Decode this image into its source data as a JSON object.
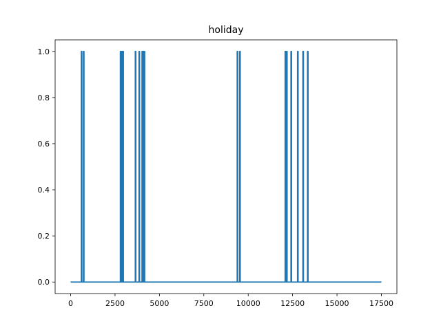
{
  "chart_data": {
    "type": "line",
    "title": "holiday",
    "xlabel": "",
    "ylabel": "",
    "xlim": [
      -875,
      18375
    ],
    "ylim": [
      -0.05,
      1.05
    ],
    "x_ticks": [
      0,
      2500,
      5000,
      7500,
      10000,
      12500,
      15000,
      17500
    ],
    "y_ticks": [
      0.0,
      0.2,
      0.4,
      0.6,
      0.8,
      1.0
    ],
    "x_tick_labels": [
      "0",
      "2500",
      "5000",
      "7500",
      "10000",
      "12500",
      "15000",
      "17500"
    ],
    "y_tick_labels": [
      "0.0",
      "0.2",
      "0.4",
      "0.6",
      "0.8",
      "1.0"
    ],
    "grid": false,
    "series": [
      {
        "color": "#1f77b4",
        "x_range": [
          0,
          17500
        ],
        "baseline": 0,
        "spike_value": 1,
        "spikes": [
          [
            600,
            630
          ],
          [
            720,
            750
          ],
          [
            2800,
            2830
          ],
          [
            2880,
            2920
          ],
          [
            2940,
            2970
          ],
          [
            3640,
            3670
          ],
          [
            3850,
            3880
          ],
          [
            4020,
            4050
          ],
          [
            4090,
            4120
          ],
          [
            4140,
            4170
          ],
          [
            9380,
            9410
          ],
          [
            9520,
            9550
          ],
          [
            12080,
            12110
          ],
          [
            12160,
            12190
          ],
          [
            12410,
            12440
          ],
          [
            12780,
            12810
          ],
          [
            13080,
            13110
          ],
          [
            13340,
            13370
          ]
        ]
      }
    ]
  }
}
